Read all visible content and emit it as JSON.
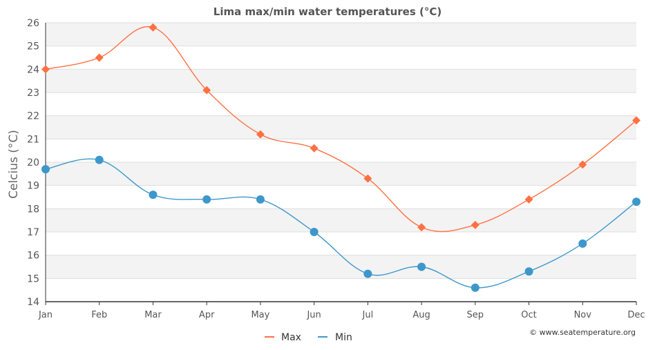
{
  "chart_data": {
    "type": "line",
    "title": "Lima max/min water temperatures (°C)",
    "xlabel": "",
    "ylabel": "Celcius (°C)",
    "categories": [
      "Jan",
      "Feb",
      "Mar",
      "Apr",
      "May",
      "Jun",
      "Jul",
      "Aug",
      "Sep",
      "Oct",
      "Nov",
      "Dec"
    ],
    "ylim": [
      14,
      26
    ],
    "yticks": [
      "14",
      "15",
      "16",
      "17",
      "18",
      "19",
      "20",
      "21",
      "22",
      "23",
      "24",
      "25",
      "26"
    ],
    "grid": "horizontal alternating bands",
    "legend_position": "bottom-center",
    "series": [
      {
        "name": "Max",
        "color": "#ff7043",
        "marker": "diamond",
        "values": [
          24.0,
          24.5,
          25.8,
          23.1,
          21.2,
          20.6,
          19.3,
          17.2,
          17.3,
          18.4,
          19.9,
          21.8
        ]
      },
      {
        "name": "Min",
        "color": "#3d97cb",
        "marker": "circle",
        "values": [
          19.7,
          20.1,
          18.6,
          18.4,
          18.4,
          17.0,
          15.2,
          15.5,
          14.6,
          15.3,
          16.5,
          18.3
        ]
      }
    ]
  },
  "credit": "© www.seatemperature.org",
  "colors": {
    "band": "#f3f3f3",
    "axis": "#333333",
    "gridline": "#dddddd"
  }
}
